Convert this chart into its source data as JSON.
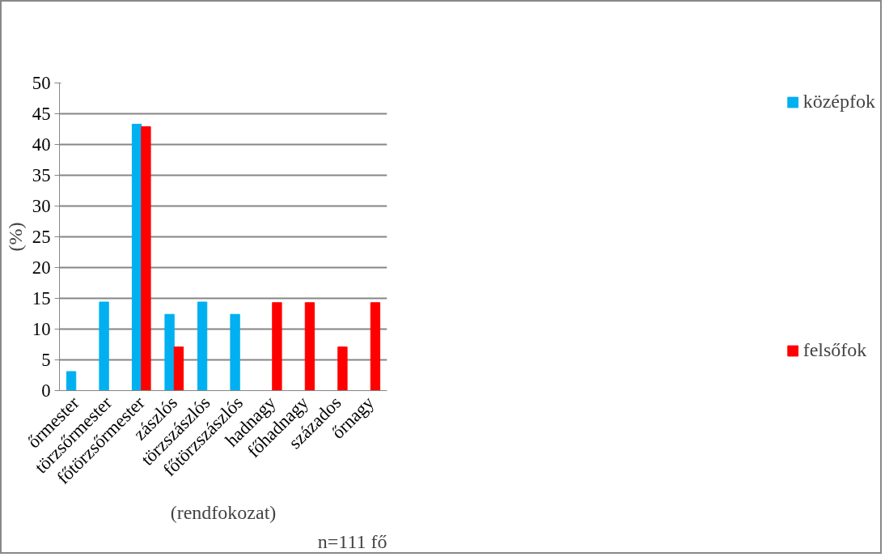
{
  "chart_data": {
    "type": "bar",
    "categories": [
      "őrmester",
      "törzsőrmester",
      "főtörzsőrmester",
      "zászlós",
      "törzszászlós",
      "főtörzszászlós",
      "hadnagy",
      "főhadnagy",
      "százados",
      "őrnagy"
    ],
    "series": [
      {
        "name": "középfok",
        "color": "#00b0f0",
        "values": [
          3.1,
          14.4,
          43.3,
          12.4,
          14.4,
          12.4,
          null,
          null,
          null,
          null
        ]
      },
      {
        "name": "felsőfok",
        "color": "#ff0000",
        "values": [
          null,
          null,
          42.9,
          7.1,
          null,
          null,
          14.3,
          14.3,
          7.1,
          14.3
        ]
      }
    ],
    "xlabel": "(rendfokozat)",
    "ylabel": "(%)",
    "ylim": [
      0,
      50
    ],
    "yticks": [
      0,
      5,
      10,
      15,
      20,
      25,
      30,
      35,
      40,
      45,
      50
    ],
    "grid": "y",
    "legend": "right",
    "annotations": [
      "n=111 fő"
    ]
  }
}
